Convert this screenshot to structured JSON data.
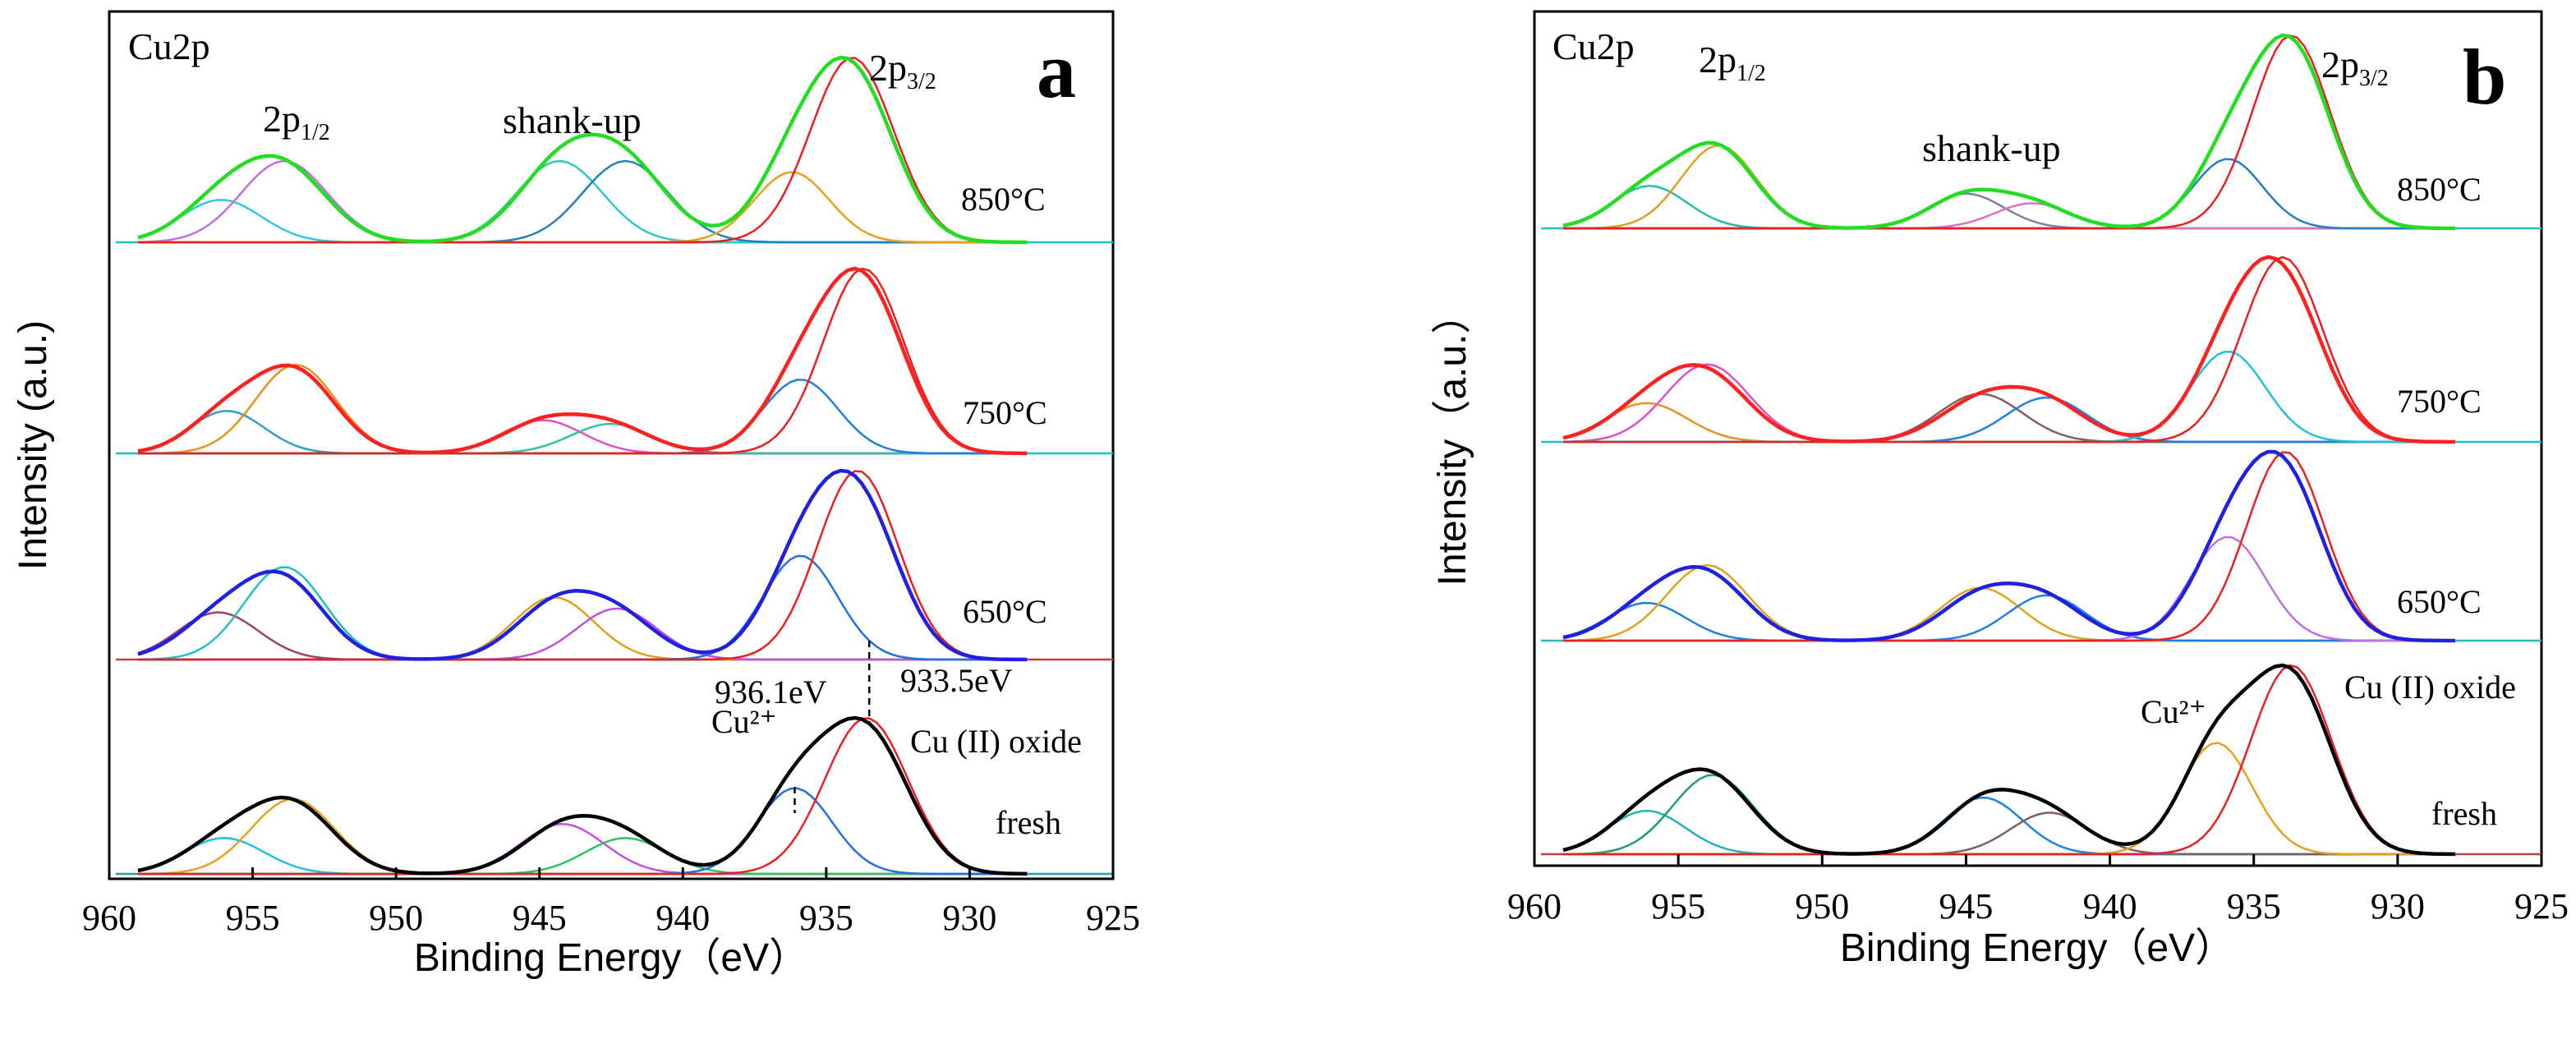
{
  "chart_data": [
    {
      "panel": "a",
      "type": "line",
      "title": "Cu2p",
      "xlabel": "Binding Energy（eV）",
      "ylabel": "Intensity (a.u.)",
      "xlim": [
        960,
        925
      ],
      "xticks": [
        "960",
        "955",
        "950",
        "945",
        "940",
        "935",
        "930",
        "925"
      ],
      "region_labels": {
        "p12": {
          "main": "2p",
          "sub": "1/2"
        },
        "p32": {
          "main": "2p",
          "sub": "3/2"
        },
        "shake": "shank-up"
      },
      "annotations": [
        {
          "text": "936.1eV",
          "x": 936.1
        },
        {
          "text": "933.5eV",
          "x": 933.5
        },
        {
          "text": "Cu (II) oxide",
          "x": 933.5
        },
        {
          "text": "Cu²⁺",
          "x": 936.1
        }
      ],
      "series": [
        {
          "name": "850°C",
          "envelope": "#22dd22",
          "baseline": "#20c0c0",
          "peaks": [
            {
              "center": 956.1,
              "height": 0.23,
              "width": 1.4,
              "color": "#30c8e0"
            },
            {
              "center": 953.9,
              "height": 0.44,
              "width": 1.5,
              "color": "#c070e0"
            },
            {
              "center": 944.3,
              "height": 0.44,
              "width": 1.5,
              "color": "#30c8c0"
            },
            {
              "center": 942.0,
              "height": 0.44,
              "width": 1.5,
              "color": "#2080c0"
            },
            {
              "center": 936.2,
              "height": 0.38,
              "width": 1.3,
              "color": "#e8a020"
            },
            {
              "center": 934.1,
              "height": 1.0,
              "width": 1.45,
              "color": "#e82020"
            }
          ]
        },
        {
          "name": "750°C",
          "envelope": "#ff2020",
          "baseline": "#20c0c0",
          "peaks": [
            {
              "center": 955.9,
              "height": 0.23,
              "width": 1.3,
              "color": "#30a0c0"
            },
            {
              "center": 953.5,
              "height": 0.48,
              "width": 1.4,
              "color": "#e89020"
            },
            {
              "center": 944.9,
              "height": 0.18,
              "width": 1.4,
              "color": "#e050c0"
            },
            {
              "center": 942.5,
              "height": 0.16,
              "width": 1.4,
              "color": "#30c0a0"
            },
            {
              "center": 935.9,
              "height": 0.4,
              "width": 1.3,
              "color": "#2080e0"
            },
            {
              "center": 933.7,
              "height": 1.0,
              "width": 1.4,
              "color": "#e82020"
            }
          ]
        },
        {
          "name": "650°C",
          "envelope": "#2020e0",
          "baseline": "#c04040",
          "peaks": [
            {
              "center": 956.2,
              "height": 0.25,
              "width": 1.4,
              "color": "#a04060"
            },
            {
              "center": 953.9,
              "height": 0.49,
              "width": 1.4,
              "color": "#20c0c0"
            },
            {
              "center": 944.5,
              "height": 0.33,
              "width": 1.4,
              "color": "#e0a020"
            },
            {
              "center": 942.3,
              "height": 0.27,
              "width": 1.4,
              "color": "#c050e0"
            },
            {
              "center": 935.9,
              "height": 0.55,
              "width": 1.3,
              "color": "#2070e0"
            },
            {
              "center": 933.9,
              "height": 1.0,
              "width": 1.4,
              "color": "#e82020"
            }
          ]
        },
        {
          "name": "fresh",
          "envelope": "#000000",
          "baseline": "#20a0a0",
          "peaks": [
            {
              "center": 956.0,
              "height": 0.23,
              "width": 1.4,
              "color": "#20c0e0"
            },
            {
              "center": 953.6,
              "height": 0.48,
              "width": 1.45,
              "color": "#e8a020"
            },
            {
              "center": 944.2,
              "height": 0.32,
              "width": 1.45,
              "color": "#c050e0"
            },
            {
              "center": 942.0,
              "height": 0.23,
              "width": 1.4,
              "color": "#30c060"
            },
            {
              "center": 936.1,
              "height": 0.55,
              "width": 1.3,
              "color": "#2070e0"
            },
            {
              "center": 933.6,
              "height": 1.0,
              "width": 1.45,
              "color": "#e82020"
            }
          ]
        }
      ]
    },
    {
      "panel": "b",
      "type": "line",
      "title": "Cu2p",
      "xlabel": "Binding Energy（eV）",
      "ylabel": "Intensity（a.u.）",
      "xlim": [
        960,
        925
      ],
      "xticks": [
        "960",
        "955",
        "950",
        "945",
        "940",
        "935",
        "930",
        "925"
      ],
      "region_labels": {
        "p12": {
          "main": "2p",
          "sub": "1/2"
        },
        "p32": {
          "main": "2p",
          "sub": "3/2"
        },
        "shake": "shank-up"
      },
      "annotations": [
        {
          "text": "Cu (II) oxide",
          "x": 933.5
        },
        {
          "text": "Cu²⁺",
          "x": 936.3
        }
      ],
      "series": [
        {
          "name": "850°C",
          "envelope": "#22dd22",
          "baseline": "#20c0c0",
          "peaks": [
            {
              "center": 956.0,
              "height": 0.22,
              "width": 1.3,
              "color": "#20c0a0"
            },
            {
              "center": 953.6,
              "height": 0.43,
              "width": 1.3,
              "color": "#e0a020"
            },
            {
              "center": 945.0,
              "height": 0.18,
              "width": 1.3,
              "color": "#8080a0"
            },
            {
              "center": 942.7,
              "height": 0.13,
              "width": 1.3,
              "color": "#e070c0"
            },
            {
              "center": 935.9,
              "height": 0.36,
              "width": 1.2,
              "color": "#2080c0"
            },
            {
              "center": 933.7,
              "height": 1.0,
              "width": 1.35,
              "color": "#e82020"
            }
          ]
        },
        {
          "name": "750°C",
          "envelope": "#ff2020",
          "baseline": "#20c0c0",
          "peaks": [
            {
              "center": 956.1,
              "height": 0.21,
              "width": 1.4,
              "color": "#e89020"
            },
            {
              "center": 954.0,
              "height": 0.42,
              "width": 1.45,
              "color": "#e050c0"
            },
            {
              "center": 944.5,
              "height": 0.26,
              "width": 1.45,
              "color": "#806060"
            },
            {
              "center": 942.2,
              "height": 0.24,
              "width": 1.4,
              "color": "#2080e0"
            },
            {
              "center": 935.9,
              "height": 0.49,
              "width": 1.3,
              "color": "#20c0e0"
            },
            {
              "center": 934.0,
              "height": 1.0,
              "width": 1.4,
              "color": "#e82020"
            }
          ]
        },
        {
          "name": "650°C",
          "envelope": "#2020e0",
          "baseline": "#20c0c0",
          "peaks": [
            {
              "center": 956.1,
              "height": 0.2,
              "width": 1.35,
              "color": "#2080e0"
            },
            {
              "center": 954.0,
              "height": 0.4,
              "width": 1.4,
              "color": "#e0a020"
            },
            {
              "center": 944.5,
              "height": 0.28,
              "width": 1.4,
              "color": "#e0a020"
            },
            {
              "center": 942.2,
              "height": 0.24,
              "width": 1.35,
              "color": "#2080e0"
            },
            {
              "center": 935.9,
              "height": 0.55,
              "width": 1.3,
              "color": "#c070e0"
            },
            {
              "center": 933.9,
              "height": 1.0,
              "width": 1.35,
              "color": "#e82020"
            }
          ]
        },
        {
          "name": "fresh",
          "envelope": "#000000",
          "baseline": "#c04040",
          "peaks": [
            {
              "center": 956.1,
              "height": 0.23,
              "width": 1.35,
              "color": "#20b0c0"
            },
            {
              "center": 953.8,
              "height": 0.42,
              "width": 1.4,
              "color": "#20a060"
            },
            {
              "center": 944.4,
              "height": 0.3,
              "width": 1.35,
              "color": "#2080e0"
            },
            {
              "center": 942.1,
              "height": 0.22,
              "width": 1.35,
              "color": "#806060"
            },
            {
              "center": 936.3,
              "height": 0.59,
              "width": 1.25,
              "color": "#e8a020"
            },
            {
              "center": 933.7,
              "height": 1.0,
              "width": 1.4,
              "color": "#e82020"
            }
          ]
        }
      ]
    }
  ]
}
